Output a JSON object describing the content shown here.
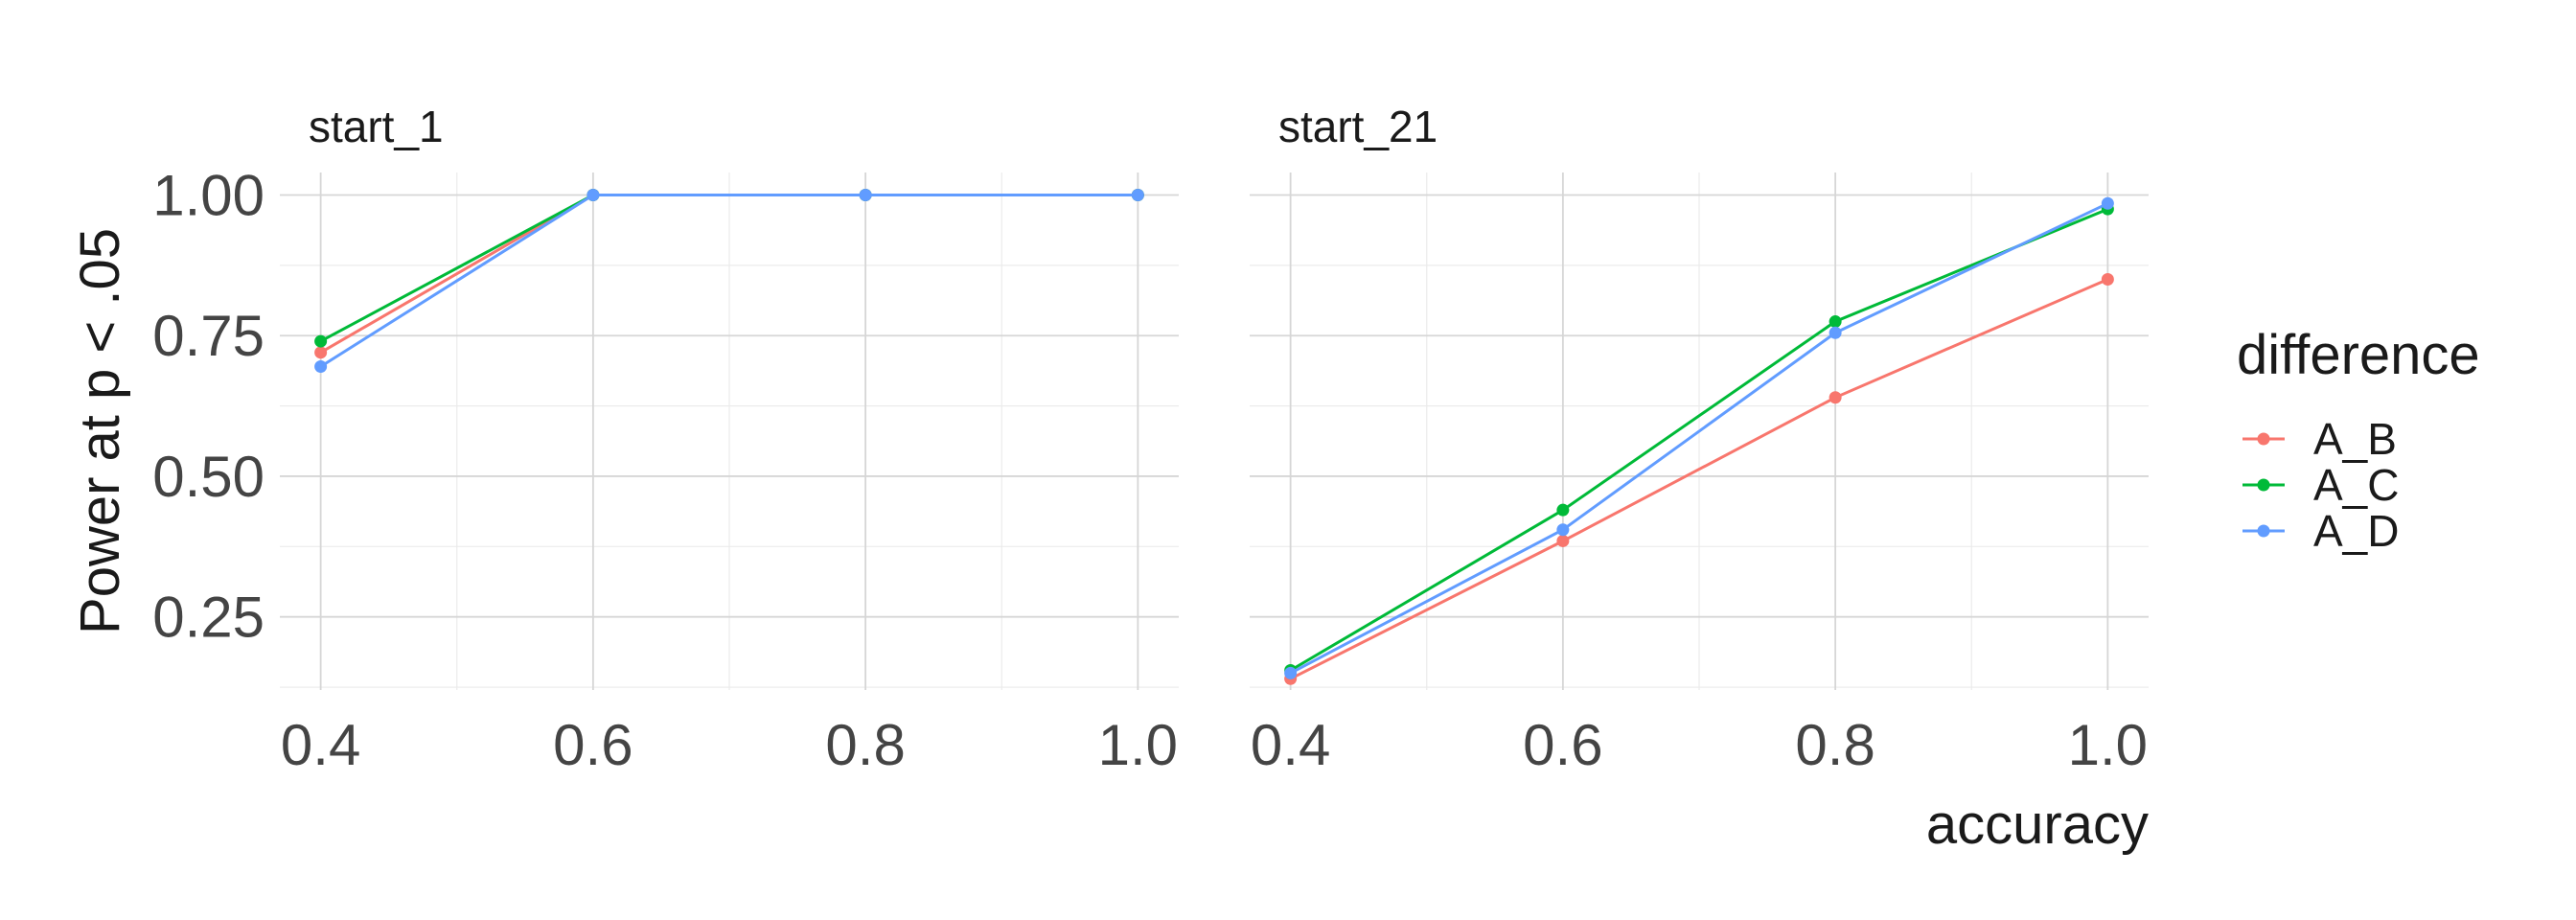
{
  "chart_data": {
    "type": "line",
    "xlabel": "accuracy",
    "ylabel": "Power at p < .05",
    "x_ticks": [
      "0.4",
      "0.6",
      "0.8",
      "1.0"
    ],
    "y_ticks": [
      "0.25",
      "0.50",
      "0.75",
      "1.00"
    ],
    "xlim": [
      0.37,
      1.03
    ],
    "ylim": [
      0.12,
      1.04
    ],
    "grid": true,
    "legend": {
      "title": "difference",
      "placement": "right",
      "entries": [
        {
          "label": "A_B",
          "color": "#F8766D"
        },
        {
          "label": "A_C",
          "color": "#00BA38"
        },
        {
          "label": "A_D",
          "color": "#619CFF"
        }
      ]
    },
    "facets": [
      {
        "label": "start_1",
        "x": [
          0.4,
          0.6,
          0.8,
          1.0
        ],
        "series": [
          {
            "name": "A_B",
            "values": [
              0.72,
              1.0,
              1.0,
              1.0
            ]
          },
          {
            "name": "A_C",
            "values": [
              0.74,
              1.0,
              1.0,
              1.0
            ]
          },
          {
            "name": "A_D",
            "values": [
              0.695,
              1.0,
              1.0,
              1.0
            ]
          }
        ]
      },
      {
        "label": "start_21",
        "x": [
          0.4,
          0.6,
          0.8,
          1.0
        ],
        "series": [
          {
            "name": "A_B",
            "values": [
              0.14,
              0.385,
              0.64,
              0.85
            ]
          },
          {
            "name": "A_C",
            "values": [
              0.155,
              0.44,
              0.775,
              0.975
            ]
          },
          {
            "name": "A_D",
            "values": [
              0.15,
              0.405,
              0.755,
              0.985
            ]
          }
        ]
      }
    ]
  }
}
